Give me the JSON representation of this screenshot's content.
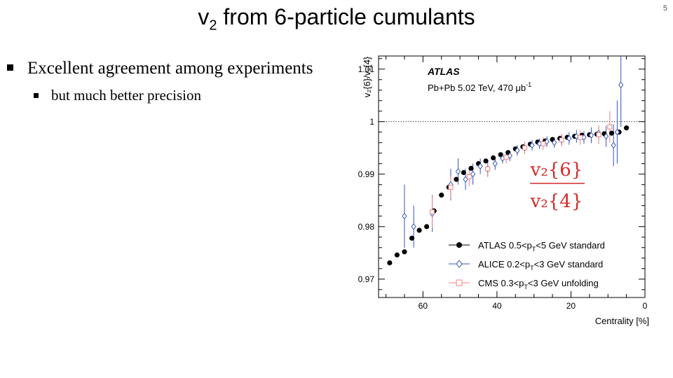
{
  "slide": {
    "title_main": "v",
    "title_sub": "2",
    "title_rest": " from 6-particle cumulants",
    "page_number": "5",
    "bullet_1": "Excellent agreement among experiments",
    "bullet_2": "but much better precision"
  },
  "chart_data": {
    "type": "scatter",
    "experiment_label": "ATLAS",
    "system_label": "Pb+Pb 5.02 TeV, 470 μb",
    "system_label_sup": "-1",
    "ratio_label_top": "v₂{6}",
    "ratio_label_bottom": "v₂{4}",
    "ylabel": "v₂{6}/v₂{4}",
    "xlabel": "Centrality [%]",
    "xlim": [
      0,
      72
    ],
    "ylim": [
      0.9665,
      1.0125
    ],
    "x_reversed": true,
    "x_ticks": [
      "60",
      "40",
      "20",
      "0"
    ],
    "y_ticks": [
      "0.97",
      "0.98",
      "0.99",
      "1",
      "1.01"
    ],
    "reference_line": 1.0,
    "legend_position": "bottom-center",
    "series": [
      {
        "name": "ATLAS 0.5<pT<5 GeV standard",
        "legend_text": "ATLAS 0.5<p",
        "legend_sub": "T",
        "legend_tail": "<5 GeV standard",
        "color": "#000000",
        "marker": "filled-circle",
        "x": [
          69,
          67,
          65,
          63,
          61,
          59,
          57,
          55,
          53,
          51,
          49,
          47,
          45,
          43,
          41,
          39,
          37,
          35,
          33,
          31,
          29,
          27,
          25,
          23,
          21,
          19,
          17,
          15,
          13,
          11,
          9,
          7,
          5
        ],
        "y": [
          0.9731,
          0.9746,
          0.9752,
          0.9778,
          0.9793,
          0.98,
          0.983,
          0.986,
          0.9875,
          0.989,
          0.9903,
          0.9911,
          0.992,
          0.9925,
          0.9931,
          0.9937,
          0.9941,
          0.9948,
          0.9952,
          0.9957,
          0.9961,
          0.9963,
          0.9966,
          0.9968,
          0.997,
          0.9972,
          0.9974,
          0.9975,
          0.9976,
          0.9977,
          0.9978,
          0.998,
          0.9988
        ]
      },
      {
        "name": "ALICE 0.2<pT<3 GeV standard",
        "legend_text": "ALICE  0.2<p",
        "legend_sub": "T",
        "legend_tail": "<3 GeV standard",
        "color": "#3355bb",
        "marker": "open-diamond",
        "x": [
          65,
          62.5,
          57.5,
          52.5,
          50.5,
          48.5,
          46.5,
          44.5,
          42.5,
          40.5,
          38.5,
          36.5,
          34.5,
          32.5,
          30.5,
          28.5,
          26.5,
          24.5,
          22.5,
          20.5,
          18.5,
          16.5,
          14.5,
          12.5,
          10.5,
          8.5,
          7.5,
          6.5
        ],
        "y": [
          0.982,
          0.98,
          0.9825,
          0.988,
          0.9905,
          0.989,
          0.99,
          0.9915,
          0.991,
          0.992,
          0.993,
          0.9935,
          0.9945,
          0.995,
          0.9955,
          0.9958,
          0.9962,
          0.996,
          0.9965,
          0.9968,
          0.9972,
          0.997,
          0.9974,
          0.9978,
          0.9972,
          0.9955,
          0.998,
          1.007
        ],
        "err": [
          0.006,
          0.004,
          0.0035,
          0.003,
          0.0025,
          0.002,
          0.002,
          0.0015,
          0.0015,
          0.0012,
          0.001,
          0.001,
          0.001,
          0.001,
          0.001,
          0.001,
          0.001,
          0.001,
          0.001,
          0.0012,
          0.0012,
          0.0012,
          0.0015,
          0.0015,
          0.002,
          0.004,
          0.006,
          0.008
        ]
      },
      {
        "name": "CMS 0.3<pT<3 GeV unfolding",
        "legend_text": "CMS     0.3<p",
        "legend_sub": "T",
        "legend_tail": "<3 GeV unfolding",
        "color": "#f08080",
        "marker": "open-square",
        "x": [
          57.5,
          52.5,
          47.5,
          42.5,
          37.5,
          32.5,
          27.5,
          22.5,
          17.5,
          12.5,
          9.5
        ],
        "y": [
          0.9828,
          0.9875,
          0.9895,
          0.991,
          0.9932,
          0.995,
          0.9958,
          0.9965,
          0.997,
          0.9975,
          0.999
        ],
        "err": [
          0.003,
          0.0022,
          0.0018,
          0.0014,
          0.0012,
          0.0012,
          0.0012,
          0.0012,
          0.0014,
          0.0018,
          0.003
        ]
      }
    ]
  }
}
